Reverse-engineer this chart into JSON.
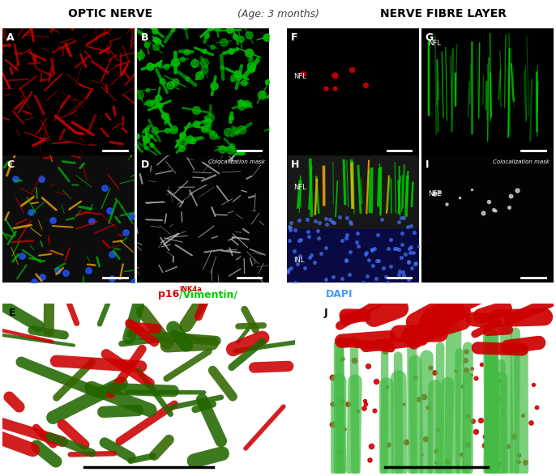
{
  "title_left": "OPTIC NERVE",
  "title_center": "(Age: 3 months)",
  "title_right": "NERVE FIBRE LAYER",
  "p16_color": "#dd0000",
  "vimentin_color": "#00cc00",
  "dapi_color": "#4499ff",
  "panel_label_color": "#ffffff",
  "panel_label_color_dark": "#000000",
  "colocalization_text": "Colocalization mask",
  "nfl_label": "NFL",
  "inl_label": "INL",
  "fig_bg": "#ffffff",
  "figwidth": 6.86,
  "figheight": 5.88,
  "title_fontsize": 10,
  "panel_label_fontsize": 9,
  "legend_fontsize": 9,
  "legend_sup_fontsize": 6,
  "colocal_fontsize": 5,
  "nfl_fontsize": 6
}
